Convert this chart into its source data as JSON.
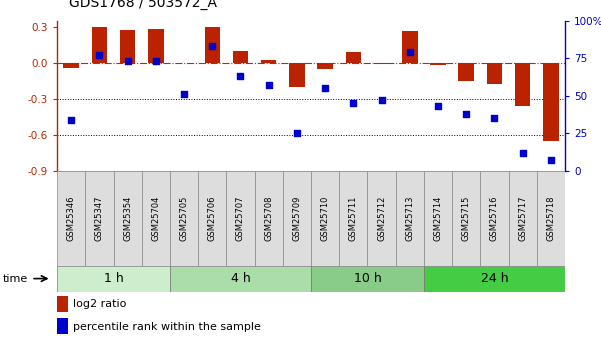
{
  "title": "GDS1768 / 503572_A",
  "samples": [
    "GSM25346",
    "GSM25347",
    "GSM25354",
    "GSM25704",
    "GSM25705",
    "GSM25706",
    "GSM25707",
    "GSM25708",
    "GSM25709",
    "GSM25710",
    "GSM25711",
    "GSM25712",
    "GSM25713",
    "GSM25714",
    "GSM25715",
    "GSM25716",
    "GSM25717",
    "GSM25718"
  ],
  "log2_ratio": [
    -0.04,
    0.3,
    0.27,
    0.285,
    -0.005,
    0.295,
    0.1,
    0.02,
    -0.2,
    -0.05,
    0.09,
    -0.01,
    0.265,
    -0.02,
    -0.15,
    -0.175,
    -0.36,
    -0.65
  ],
  "percentile": [
    34,
    77,
    73,
    73,
    51,
    83,
    63,
    57,
    25,
    55,
    45,
    47,
    79,
    43,
    38,
    35,
    12,
    7
  ],
  "groups": [
    {
      "label": "1 h",
      "start": 0,
      "end": 4,
      "color": "#cceecc"
    },
    {
      "label": "4 h",
      "start": 4,
      "end": 9,
      "color": "#aaddaa"
    },
    {
      "label": "10 h",
      "start": 9,
      "end": 13,
      "color": "#88cc88"
    },
    {
      "label": "24 h",
      "start": 13,
      "end": 18,
      "color": "#44cc44"
    }
  ],
  "bar_color": "#bb2200",
  "dot_color": "#0000cc",
  "zero_line_color": "#cc2200",
  "grid_color": "#000000",
  "ylim_left": [
    -0.9,
    0.35
  ],
  "ylim_right": [
    0,
    100
  ],
  "yticks_left": [
    -0.9,
    -0.6,
    -0.3,
    0.0,
    0.3
  ],
  "yticks_right": [
    0,
    25,
    50,
    75,
    100
  ],
  "bg_color": "#ffffff",
  "sample_box_color": "#dddddd",
  "sample_box_edge": "#888888"
}
